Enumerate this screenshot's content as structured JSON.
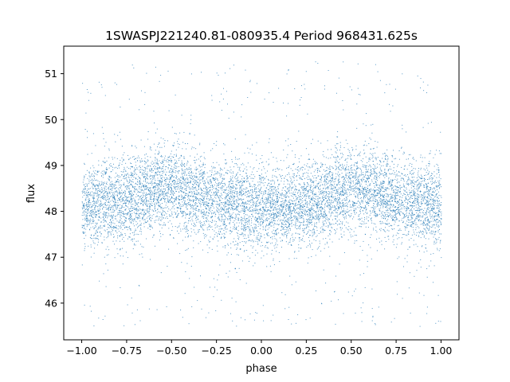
{
  "chart_data": {
    "type": "scatter",
    "title": "1SWASPJ221240.81-080935.4 Period 968431.625s",
    "xlabel": "phase",
    "ylabel": "flux",
    "xlim": [
      -1.1,
      1.1
    ],
    "ylim": [
      45.2,
      51.6
    ],
    "x_ticks": [
      -1.0,
      -0.75,
      -0.5,
      -0.25,
      0.0,
      0.25,
      0.5,
      0.75,
      1.0
    ],
    "x_tick_labels": [
      "−1.00",
      "−0.75",
      "−0.50",
      "−0.25",
      "0.00",
      "0.25",
      "0.50",
      "0.75",
      "1.00"
    ],
    "y_ticks": [
      46,
      47,
      48,
      49,
      50,
      51
    ],
    "y_tick_labels": [
      "46",
      "47",
      "48",
      "49",
      "50",
      "51"
    ],
    "grid": false,
    "marker_color": "#1f77b4",
    "series": [
      {
        "phase": [
          -1.0,
          -0.9,
          -0.8,
          -0.7,
          -0.6,
          -0.5,
          -0.4,
          -0.3,
          -0.2,
          -0.1,
          0.0,
          0.1,
          0.2,
          0.3,
          0.4,
          0.5,
          0.6,
          0.7,
          0.8,
          0.9,
          1.0
        ],
        "median_flux": [
          48.1,
          48.2,
          48.2,
          48.3,
          48.5,
          48.5,
          48.4,
          48.3,
          48.2,
          48.1,
          48.1,
          48.1,
          48.1,
          48.2,
          48.4,
          48.5,
          48.5,
          48.3,
          48.2,
          48.2,
          48.1
        ],
        "flux_range": [
          45.5,
          51.3
        ]
      }
    ]
  }
}
